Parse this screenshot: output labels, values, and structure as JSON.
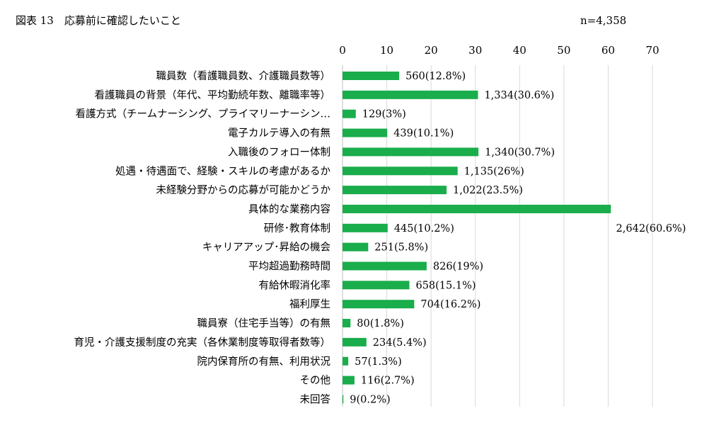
{
  "chart_data": {
    "type": "bar",
    "orientation": "horizontal",
    "title": "図表 13　応募前に確認したいこと",
    "n_label": "n=4,358",
    "xlabel": "",
    "ylabel": "",
    "xlim": [
      0,
      70
    ],
    "xticks": [
      0,
      10,
      20,
      30,
      40,
      50,
      60,
      70
    ],
    "grid": true,
    "legend": "none",
    "bar_color": "#1aad4b",
    "categories": [
      "職員数（看護職員数、介護職員数等）",
      "看護職員の背景（年代、平均勤続年数、離職率等）",
      "看護方式（チームナーシング、プライマリーナーシン…",
      "電子カルテ導入の有無",
      "入職後のフォロー体制",
      "処遇・待遇面で、経験・スキルの考慮があるか",
      "未経験分野からの応募が可能かどうか",
      "具体的な業務内容",
      "研修･教育体制",
      "キャリアアップ･昇給の機会",
      "平均超過勤務時間",
      "有給休暇消化率",
      "福利厚生",
      "職員寮（住宅手当等）の有無",
      "育児・介護支援制度の充実（各休業制度等取得者数等）",
      "院内保育所の有無、利用状況",
      "その他",
      "未回答"
    ],
    "values": [
      12.8,
      30.6,
      3,
      10.1,
      30.7,
      26,
      23.5,
      60.6,
      10.2,
      5.8,
      19,
      15.1,
      16.2,
      1.8,
      5.4,
      1.3,
      2.7,
      0.2
    ],
    "data_labels": [
      "560(12.8%)",
      "1,334(30.6%)",
      "129(3%)",
      "439(10.1%)",
      "1,340(30.7%)",
      "1,135(26%)",
      "1,022(23.5%)",
      "2,642(60.6%)",
      "445(10.2%)",
      "251(5.8%)",
      "826(19%)",
      "658(15.1%)",
      "704(16.2%)",
      "80(1.8%)",
      "234(5.4%)",
      "57(1.3%)",
      "116(2.7%)",
      "9(0.2%)"
    ]
  }
}
